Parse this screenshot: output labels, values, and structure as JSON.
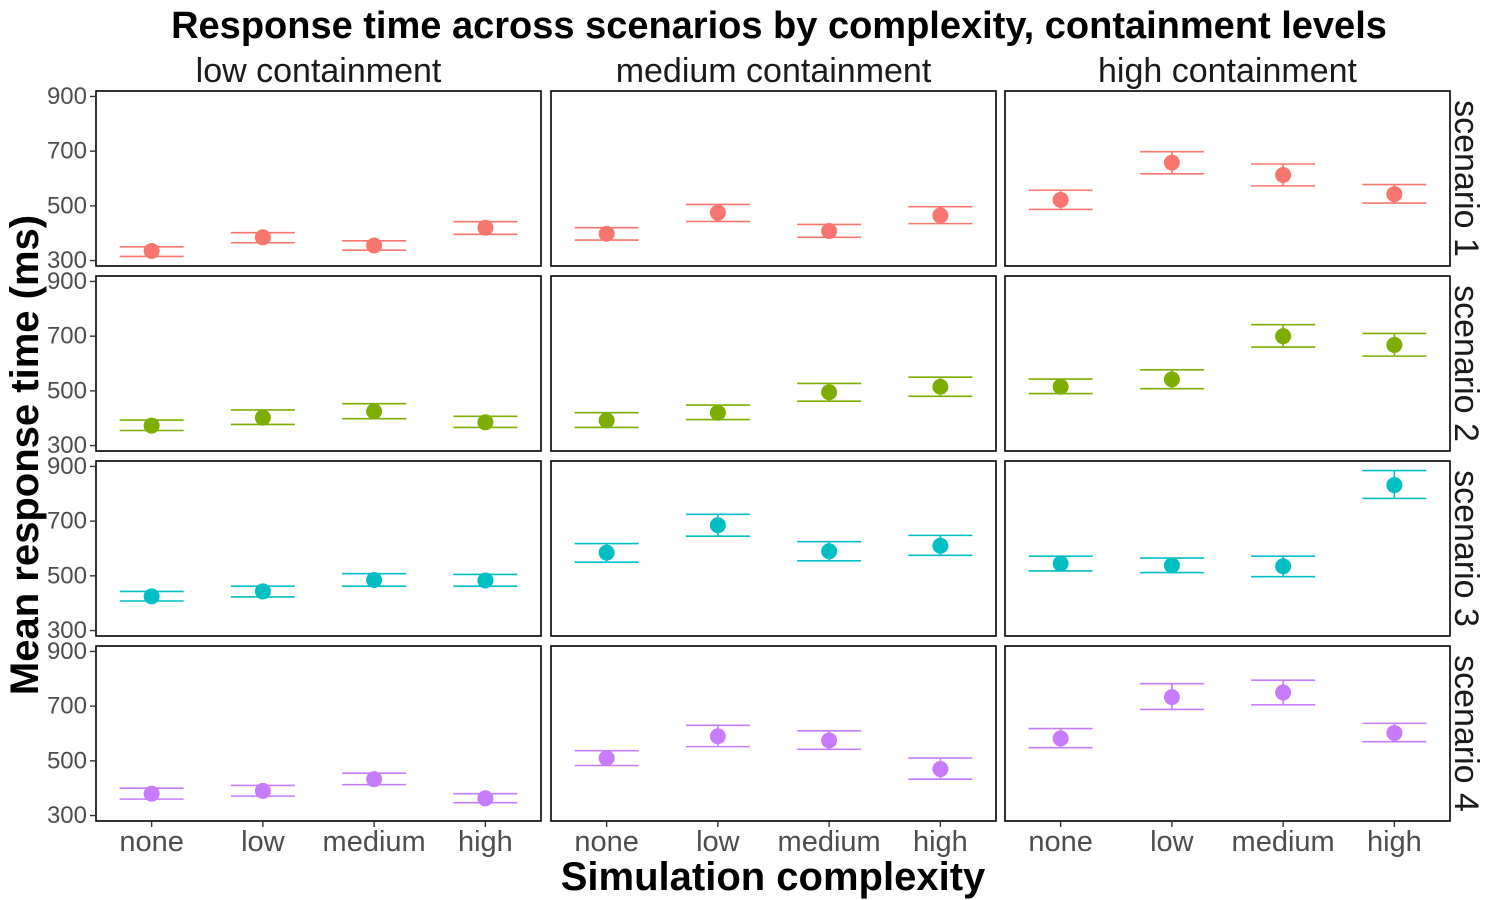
{
  "chart_data": {
    "type": "scatter",
    "title": "Response time across scenarios by complexity, containment levels",
    "xlabel": "Simulation complexity",
    "ylabel": "Mean response time (ms)",
    "categories": [
      "none",
      "low",
      "medium",
      "high"
    ],
    "columns": [
      "low containment",
      "medium containment",
      "high containment"
    ],
    "rows": [
      "scenario 1",
      "scenario 2",
      "scenario 3",
      "scenario 4"
    ],
    "ylim": [
      280,
      920
    ],
    "yticks": [
      "300",
      "500",
      "700",
      "900"
    ],
    "grid": false,
    "legend": "none",
    "row_colors": [
      "#F8766D",
      "#7CAE00",
      "#00BFC4",
      "#C77CFF"
    ],
    "panels": [
      [
        {
          "mean": [
            335,
            385,
            355,
            420
          ],
          "lo": [
            315,
            365,
            338,
            396
          ],
          "hi": [
            350,
            402,
            372,
            442
          ]
        },
        {
          "mean": [
            398,
            475,
            408,
            465
          ],
          "lo": [
            375,
            443,
            385,
            435
          ],
          "hi": [
            420,
            505,
            432,
            497
          ]
        },
        {
          "mean": [
            522,
            658,
            613,
            543
          ],
          "lo": [
            487,
            617,
            573,
            510
          ],
          "hi": [
            557,
            698,
            653,
            578
          ]
        }
      ],
      [
        {
          "mean": [
            373,
            402,
            425,
            385
          ],
          "lo": [
            355,
            377,
            398,
            366
          ],
          "hi": [
            393,
            430,
            453,
            407
          ]
        },
        {
          "mean": [
            392,
            420,
            495,
            515
          ],
          "lo": [
            366,
            395,
            462,
            480
          ],
          "hi": [
            420,
            448,
            527,
            550
          ]
        },
        {
          "mean": [
            515,
            542,
            700,
            668
          ],
          "lo": [
            490,
            508,
            660,
            627
          ],
          "hi": [
            543,
            577,
            742,
            710
          ]
        }
      ],
      [
        {
          "mean": [
            425,
            443,
            485,
            483
          ],
          "lo": [
            408,
            423,
            462,
            462
          ],
          "hi": [
            443,
            462,
            508,
            505
          ]
        },
        {
          "mean": [
            585,
            685,
            590,
            610
          ],
          "lo": [
            550,
            645,
            555,
            575
          ],
          "hi": [
            618,
            725,
            625,
            648
          ]
        },
        {
          "mean": [
            545,
            538,
            535,
            832
          ],
          "lo": [
            518,
            512,
            497,
            783
          ],
          "hi": [
            572,
            565,
            572,
            885
          ]
        }
      ],
      [
        {
          "mean": [
            380,
            390,
            433,
            363
          ],
          "lo": [
            360,
            371,
            413,
            347
          ],
          "hi": [
            400,
            410,
            455,
            380
          ]
        },
        {
          "mean": [
            510,
            590,
            575,
            470
          ],
          "lo": [
            483,
            552,
            542,
            433
          ],
          "hi": [
            537,
            630,
            610,
            510
          ]
        },
        {
          "mean": [
            582,
            733,
            750,
            602
          ],
          "lo": [
            548,
            688,
            705,
            570
          ],
          "hi": [
            618,
            782,
            795,
            637
          ]
        }
      ]
    ]
  }
}
